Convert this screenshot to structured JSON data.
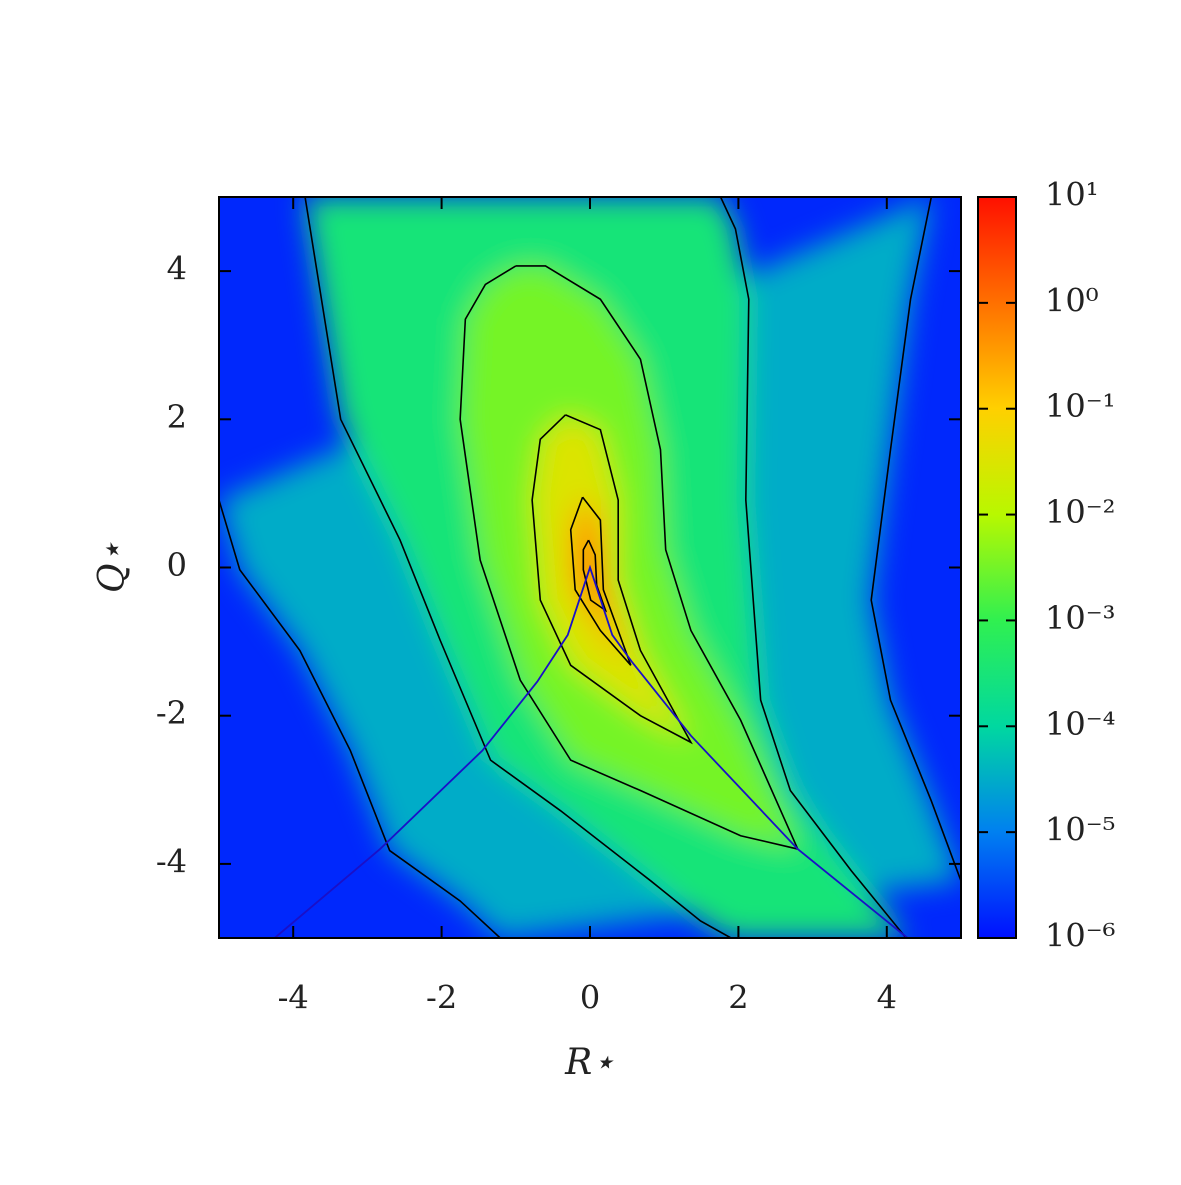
{
  "chart_data": {
    "type": "contour",
    "xlabel": "R⋆",
    "ylabel": "Q⋆",
    "xlim": [
      -5,
      5
    ],
    "ylim": [
      -5,
      5
    ],
    "xticks": [
      -4,
      -2,
      0,
      2,
      4
    ],
    "yticks": [
      -4,
      -2,
      0,
      2,
      4
    ],
    "colormap": [
      "#0010ff",
      "#0080f0",
      "#00d8a0",
      "#30f050",
      "#b8f800",
      "#ffd000",
      "#ff7000",
      "#ff1000"
    ],
    "colorbar": {
      "scale": "log",
      "lim": [
        1e-06,
        10
      ],
      "ticks": [
        {
          "value": 1e-06,
          "label": "10⁻⁶"
        },
        {
          "value": 1e-05,
          "label": "10⁻⁵"
        },
        {
          "value": 0.0001,
          "label": "10⁻⁴"
        },
        {
          "value": 0.001,
          "label": "10⁻³"
        },
        {
          "value": 0.01,
          "label": "10⁻²"
        },
        {
          "value": 0.1,
          "label": "10⁻¹"
        },
        {
          "value": 1,
          "label": "10⁰"
        },
        {
          "value": 10,
          "label": "10¹"
        }
      ]
    },
    "contours": [
      {
        "level": 1e-05,
        "color": "#000000",
        "x": [
          -5,
          -4.72,
          -3.91,
          -3.23,
          -2.7,
          -1.75,
          -1.21,
          null,
          5.0,
          4.6,
          4.05,
          3.79,
          4.05,
          4.32,
          4.6
        ],
        "y": [
          0.91,
          -0.03,
          -1.12,
          -2.47,
          -3.82,
          -4.5,
          -5,
          null,
          -4.23,
          -3.15,
          -1.79,
          -0.44,
          1.59,
          3.62,
          5
        ]
      },
      {
        "level": 0.0001,
        "color": "#000000",
        "x": [
          -3.84,
          -3.36,
          -2.56,
          -2.02,
          -1.34,
          -0.4,
          0.82,
          1.49,
          1.9,
          null,
          4.26,
          3.52,
          2.7,
          2.3,
          2.1,
          2.14,
          1.96,
          1.76
        ],
        "y": [
          5,
          2.0,
          0.37,
          -0.98,
          -2.6,
          -3.28,
          -4.23,
          -4.77,
          -5,
          null,
          -5,
          -4.09,
          -3.01,
          -1.79,
          0.91,
          3.62,
          4.57,
          5
        ]
      },
      {
        "level": 0.001,
        "color": "#000000",
        "x": [
          -1.0,
          -0.6,
          0.14,
          0.68,
          0.95,
          1.02,
          1.36,
          2.03,
          2.8,
          2.03,
          0.68,
          -0.26,
          -0.94,
          -1.48,
          -1.75,
          -1.68,
          -1.41,
          -1.0
        ],
        "y": [
          4.07,
          4.07,
          3.62,
          2.81,
          1.59,
          0.24,
          -0.85,
          -2.06,
          -3.8,
          -3.62,
          -3.01,
          -2.6,
          -1.52,
          0.1,
          2.0,
          3.35,
          3.82,
          4.07
        ]
      },
      {
        "level": 0.01,
        "color": "#000000",
        "x": [
          -0.33,
          0.14,
          0.38,
          0.38,
          0.68,
          1.36,
          0.68,
          -0.26,
          -0.67,
          -0.78,
          -0.67,
          -0.33
        ],
        "y": [
          2.06,
          1.86,
          0.91,
          -0.17,
          -1.12,
          -2.36,
          -2.0,
          -1.32,
          -0.44,
          0.91,
          1.73,
          2.06
        ]
      },
      {
        "level": 0.1,
        "color": "#000000",
        "x": [
          -0.1,
          0.14,
          0.18,
          0.55,
          0.14,
          -0.2,
          -0.26,
          -0.1
        ],
        "y": [
          0.95,
          0.64,
          -0.3,
          -1.32,
          -0.85,
          -0.3,
          0.51,
          0.95
        ]
      },
      {
        "level": 1,
        "color": "#000000",
        "x": [
          -0.02,
          0.07,
          0.09,
          0.21,
          0.01,
          -0.09,
          -0.09,
          -0.02
        ],
        "y": [
          0.37,
          0.17,
          -0.24,
          -0.58,
          -0.44,
          -0.03,
          0.24,
          0.37
        ]
      }
    ],
    "lines": [
      {
        "color": "#1a10c8",
        "x": [
          -4.25,
          -2.83,
          -1.45,
          -0.71,
          -0.3,
          0,
          0.3,
          0.57,
          1.36,
          2.8,
          4.28
        ],
        "y": [
          -5,
          -3.8,
          -2.47,
          -1.54,
          -0.91,
          0,
          -0.91,
          -1.28,
          -2.27,
          -3.8,
          -5
        ]
      }
    ]
  }
}
